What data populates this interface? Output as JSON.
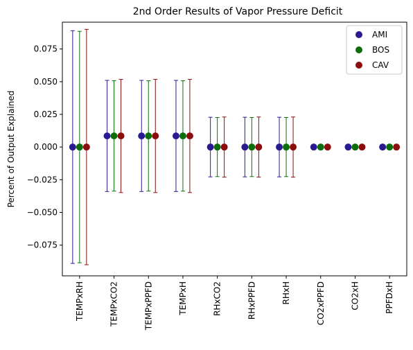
{
  "chart_data": {
    "type": "scatter",
    "title": "2nd Order Results of Vapor Pressure Deficit",
    "xlabel": "",
    "ylabel": "Percent of Output Explained",
    "categories": [
      "TEMPxRH",
      "TEMPxCO2",
      "TEMPxPPFD",
      "TEMPxH",
      "RHxCO2",
      "RHxPPFD",
      "RHxH",
      "CO2xPPFD",
      "CO2xH",
      "PPFDxH"
    ],
    "ylim": [
      -0.0985,
      0.0955
    ],
    "yticks": [
      -0.075,
      -0.05,
      -0.025,
      0.0,
      0.025,
      0.05,
      0.075
    ],
    "ytick_labels": [
      "−0.075",
      "−0.050",
      "−0.025",
      "0.000",
      "0.025",
      "0.050",
      "0.075"
    ],
    "grid": false,
    "legend_position": "top-right",
    "series": [
      {
        "name": "AMI",
        "color": "#2a1a8f",
        "values": [
          0.0,
          0.0085,
          0.0085,
          0.0085,
          0.0,
          0.0,
          0.0,
          0.0,
          0.0,
          0.0
        ],
        "errors": [
          0.089,
          0.0425,
          0.0425,
          0.0425,
          0.0228,
          0.0228,
          0.0228,
          0.0,
          0.0,
          0.0
        ]
      },
      {
        "name": "BOS",
        "color": "#0b6e0b",
        "values": [
          0.0,
          0.0085,
          0.0085,
          0.0085,
          0.0,
          0.0,
          0.0,
          0.0,
          0.0,
          0.0
        ],
        "errors": [
          0.0885,
          0.0422,
          0.0422,
          0.0422,
          0.0226,
          0.0226,
          0.0226,
          0.0,
          0.0,
          0.0
        ]
      },
      {
        "name": "CAV",
        "color": "#8b0d0d",
        "values": [
          0.0,
          0.0085,
          0.0085,
          0.0085,
          0.0,
          0.0,
          0.0,
          0.0,
          0.0,
          0.0
        ],
        "errors": [
          0.09,
          0.0433,
          0.0433,
          0.0433,
          0.023,
          0.023,
          0.023,
          0.0,
          0.0,
          0.0
        ]
      }
    ]
  }
}
